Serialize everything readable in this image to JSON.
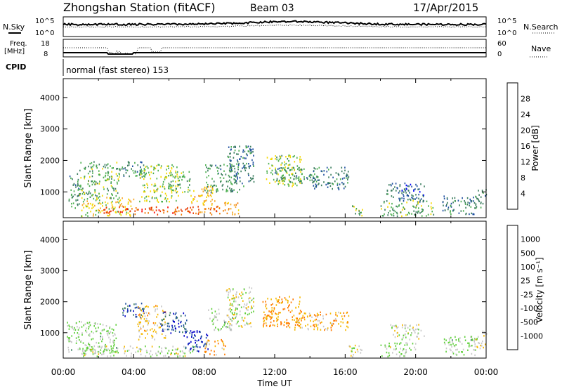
{
  "header": {
    "title": "Zhongshan Station (fitACF)",
    "beam": "Beam 03",
    "date": "17/Apr/2015"
  },
  "top_panels": {
    "nsky_label": "N.Sky",
    "nsky_ticks": [
      "10^5",
      "10^0"
    ],
    "nsearch_label": "N.Search",
    "nsearch_ticks": [
      "10^5",
      "10^0"
    ],
    "freq_label": "Freq.",
    "freq_unit": "[MHz]",
    "freq_ticks": [
      "18",
      "8"
    ],
    "nave_label": "Nave",
    "nave_ticks": [
      "60",
      "0"
    ],
    "cpid_label": "CPID",
    "cpid_text": "normal (fast stereo) 153"
  },
  "colors": {
    "power": [
      "#0000ff",
      "#1e4fa0",
      "#3b7d5f",
      "#4caf50",
      "#f5d800",
      "#f5a623",
      "#f07800",
      "#e83a00",
      "#ff0000"
    ],
    "velocity": [
      "#ff0000",
      "#f05000",
      "#ff7a00",
      "#f5b800",
      "#c8c8c8",
      "#5fcf3a",
      "#3b7d5f",
      "#1e4fa0",
      "#0000c8"
    ]
  },
  "chart_data": [
    {
      "type": "heatmap",
      "title": "",
      "xlabel": "Time UT",
      "ylabel": "Slant Range [km]",
      "x_ticks": [
        "00:00",
        "04:00",
        "08:00",
        "12:00",
        "16:00",
        "20:00",
        "00:00"
      ],
      "y_ticks": [
        "1000",
        "2000",
        "3000",
        "4000"
      ],
      "ylim": [
        180,
        4600
      ],
      "colorbar_label": "Power [dB]",
      "colorbar_ticks": [
        "4",
        "8",
        "12",
        "16",
        "20",
        "24",
        "28"
      ],
      "colorbar_range": [
        0,
        32
      ],
      "regions": [
        {
          "t": [
            0.3,
            0.9
          ],
          "r": [
            400,
            1600
          ],
          "v": 10
        },
        {
          "t": [
            0.9,
            3.2
          ],
          "r": [
            800,
            2000
          ],
          "v": 12
        },
        {
          "t": [
            1.0,
            4.0
          ],
          "r": [
            250,
            850
          ],
          "v": 16
        },
        {
          "t": [
            2.0,
            7.5
          ],
          "r": [
            300,
            550
          ],
          "v": 26
        },
        {
          "t": [
            3.3,
            4.6
          ],
          "r": [
            1500,
            2000
          ],
          "v": 9
        },
        {
          "t": [
            4.3,
            6.5
          ],
          "r": [
            700,
            1900
          ],
          "v": 14
        },
        {
          "t": [
            6.0,
            7.2
          ],
          "r": [
            1000,
            1700
          ],
          "v": 13
        },
        {
          "t": [
            7.2,
            8.6
          ],
          "r": [
            600,
            1200
          ],
          "v": 18
        },
        {
          "t": [
            7.5,
            9.0
          ],
          "r": [
            300,
            600
          ],
          "v": 24
        },
        {
          "t": [
            8.0,
            10.0
          ],
          "r": [
            1000,
            1900
          ],
          "v": 10
        },
        {
          "t": [
            9.3,
            10.8
          ],
          "r": [
            1200,
            2500
          ],
          "v": 8
        },
        {
          "t": [
            9.0,
            10.0
          ],
          "r": [
            300,
            700
          ],
          "v": 20
        },
        {
          "t": [
            11.5,
            13.5
          ],
          "r": [
            1200,
            2200
          ],
          "v": 14
        },
        {
          "t": [
            12.0,
            14.5
          ],
          "r": [
            1300,
            1800
          ],
          "v": 10
        },
        {
          "t": [
            14.0,
            16.2
          ],
          "r": [
            1100,
            1800
          ],
          "v": 8
        },
        {
          "t": [
            16.3,
            17.0
          ],
          "r": [
            250,
            600
          ],
          "v": 12
        },
        {
          "t": [
            18.3,
            19.6
          ],
          "r": [
            800,
            1300
          ],
          "v": 8
        },
        {
          "t": [
            19.0,
            20.5
          ],
          "r": [
            700,
            1300
          ],
          "v": 6
        },
        {
          "t": [
            18.0,
            21.0
          ],
          "r": [
            250,
            750
          ],
          "v": 12
        },
        {
          "t": [
            21.5,
            23.4
          ],
          "r": [
            300,
            900
          ],
          "v": 8
        },
        {
          "t": [
            23.3,
            24.0
          ],
          "r": [
            500,
            1100
          ],
          "v": 10
        }
      ]
    },
    {
      "type": "heatmap",
      "title": "",
      "xlabel": "Time UT",
      "ylabel": "Slant Range [km]",
      "x_ticks": [
        "00:00",
        "04:00",
        "08:00",
        "12:00",
        "16:00",
        "20:00",
        "00:00"
      ],
      "y_ticks": [
        "1000",
        "2000",
        "3000",
        "4000"
      ],
      "ylim": [
        180,
        4600
      ],
      "colorbar_label": "Velocity [m s⁻¹]",
      "colorbar_ticks": [
        "-1000",
        "-500",
        "-100",
        "-25",
        "25",
        "100",
        "500",
        "1000"
      ],
      "colorbar_range": [
        -1200,
        1200
      ],
      "regions": [
        {
          "t": [
            0.2,
            3.0
          ],
          "r": [
            400,
            1400
          ],
          "v": 150
        },
        {
          "t": [
            1.0,
            7.5
          ],
          "r": [
            250,
            600
          ],
          "v": 60
        },
        {
          "t": [
            3.3,
            4.6
          ],
          "r": [
            1500,
            2000
          ],
          "v": 800
        },
        {
          "t": [
            4.2,
            5.8
          ],
          "r": [
            800,
            1900
          ],
          "v": -200
        },
        {
          "t": [
            5.5,
            7.0
          ],
          "r": [
            1000,
            1700
          ],
          "v": 800
        },
        {
          "t": [
            6.8,
            8.2
          ],
          "r": [
            400,
            1100
          ],
          "v": 900
        },
        {
          "t": [
            8.0,
            9.2
          ],
          "r": [
            300,
            800
          ],
          "v": -300
        },
        {
          "t": [
            8.2,
            9.6
          ],
          "r": [
            1100,
            1800
          ],
          "v": 200
        },
        {
          "t": [
            9.2,
            10.8
          ],
          "r": [
            1200,
            2500
          ],
          "v": 0
        },
        {
          "t": [
            11.3,
            13.5
          ],
          "r": [
            1200,
            2200
          ],
          "v": -400
        },
        {
          "t": [
            13.0,
            16.2
          ],
          "r": [
            1100,
            1700
          ],
          "v": -300
        },
        {
          "t": [
            16.2,
            17.0
          ],
          "r": [
            250,
            650
          ],
          "v": 0
        },
        {
          "t": [
            18.5,
            20.5
          ],
          "r": [
            800,
            1300
          ],
          "v": 0
        },
        {
          "t": [
            18.0,
            20.0
          ],
          "r": [
            250,
            700
          ],
          "v": 120
        },
        {
          "t": [
            21.5,
            23.4
          ],
          "r": [
            300,
            900
          ],
          "v": 150
        },
        {
          "t": [
            23.3,
            24.0
          ],
          "r": [
            500,
            1100
          ],
          "v": -80
        }
      ]
    }
  ]
}
